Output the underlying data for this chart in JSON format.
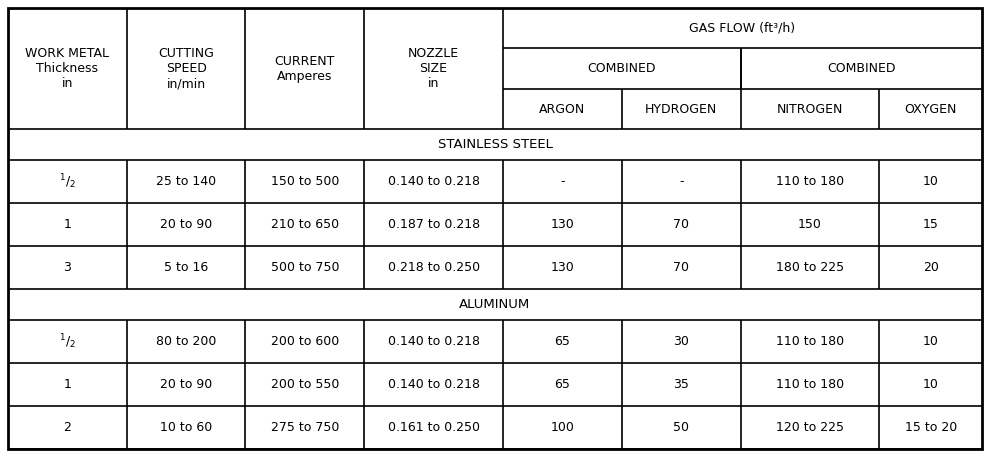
{
  "col_props": [
    0.118,
    0.118,
    0.118,
    0.138,
    0.118,
    0.118,
    0.138,
    0.102
  ],
  "header_labels": [
    "WORK METAL\nThickness\nin",
    "CUTTING\nSPEED\nin/min",
    "CURRENT\nAmperes",
    "NOZZLE\nSIZE\nin"
  ],
  "gas_flow_label": "GAS FLOW (ft³/h)",
  "combined1": "COMBINED",
  "combined2": "COMBINED",
  "sub_labels": [
    "ARGON",
    "HYDROGEN",
    "NITROGEN",
    "OXYGEN"
  ],
  "stainless_steel_rows": [
    [
      "½",
      "25 to 140",
      "150 to 500",
      "0.140 to 0.218",
      "-",
      "-",
      "110 to 180",
      "10"
    ],
    [
      "1",
      "20 to 90",
      "210 to 650",
      "0.187 to 0.218",
      "130",
      "70",
      "150",
      "15"
    ],
    [
      "3",
      "5 to 16",
      "500 to 750",
      "0.218 to 0.250",
      "130",
      "70",
      "180 to 225",
      "20"
    ]
  ],
  "aluminum_rows": [
    [
      "½",
      "80 to 200",
      "200 to 600",
      "0.140 to 0.218",
      "65",
      "30",
      "110 to 180",
      "10"
    ],
    [
      "1",
      "20 to 90",
      "200 to 550",
      "0.140 to 0.218",
      "65",
      "35",
      "110 to 180",
      "10"
    ],
    [
      "2",
      "10 to 60",
      "275 to 750",
      "0.161 to 0.250",
      "100",
      "50",
      "120 to 225",
      "15 to 20"
    ]
  ],
  "half_rows": [
    0,
    3
  ],
  "bg_color": "#ffffff",
  "border_color": "#000000",
  "text_color": "#000000",
  "font_size": 9.0,
  "header_font_size": 9.0,
  "section_font_size": 9.5,
  "outer_lw": 2.0,
  "inner_lw": 1.2
}
